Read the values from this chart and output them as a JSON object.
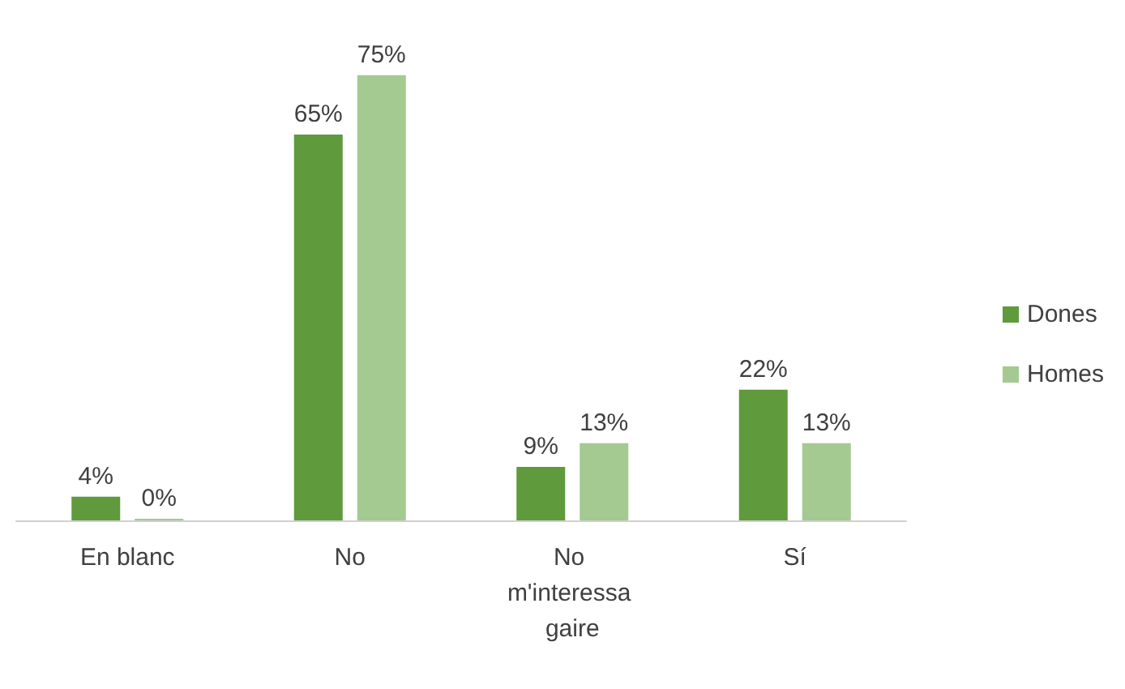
{
  "chart_data": {
    "type": "bar",
    "categories": [
      "En blanc",
      "No",
      "No m'interessa gaire",
      "Sí"
    ],
    "series": [
      {
        "name": "Dones",
        "color": "#5f9a3c",
        "values": [
          4,
          65,
          9,
          22
        ],
        "value_labels": [
          "4%",
          "65%",
          "9%",
          "22%"
        ]
      },
      {
        "name": "Homes",
        "color": "#a4c991",
        "values": [
          0,
          75,
          13,
          13
        ],
        "value_labels": [
          "0%",
          "75%",
          "13%",
          "13%"
        ]
      }
    ],
    "legend": "right"
  }
}
